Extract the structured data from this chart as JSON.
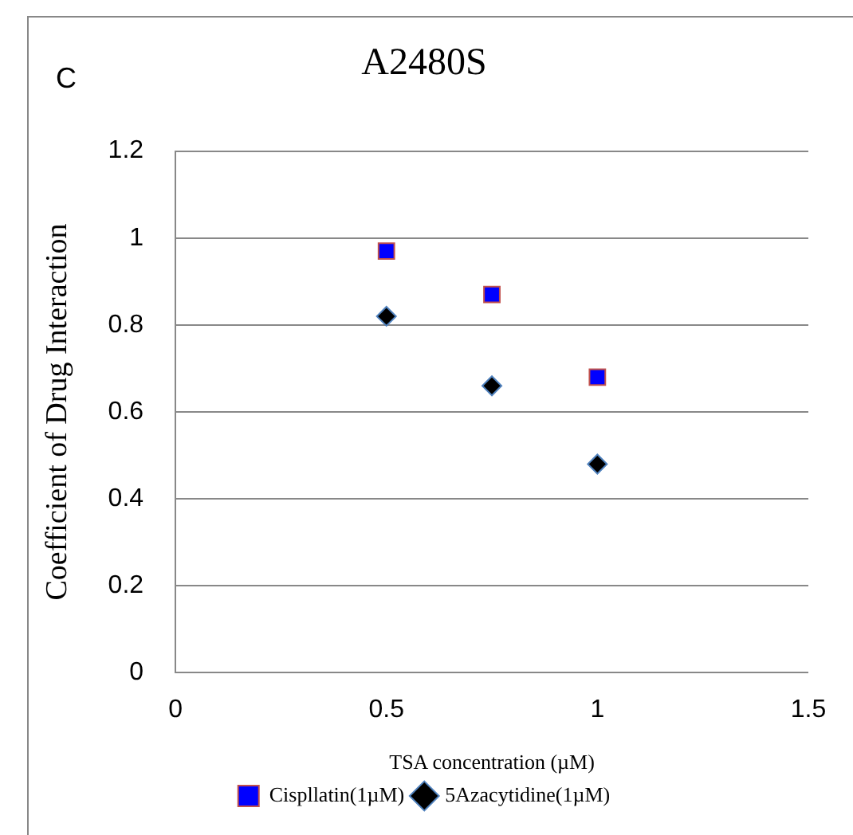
{
  "chart_data": {
    "type": "scatter",
    "title": "A2480S",
    "xlabel": "TSA concentration (µM)",
    "ylabel": "Coefficient of Drug Interaction",
    "annotations": [
      "C"
    ],
    "xlim": [
      0,
      1.5
    ],
    "xticks": [
      0,
      0.5,
      1,
      1.5
    ],
    "ylim": [
      0,
      1.2
    ],
    "yticks": [
      0,
      0.2,
      0.4,
      0.6,
      0.8,
      1,
      1.2
    ],
    "grid": "y",
    "legend": "bottom",
    "series": [
      {
        "name": "Cispllatin(1µM)",
        "color": "#0000ff",
        "marker": "square",
        "x": [
          0.5,
          0.75,
          1
        ],
        "values": [
          0.97,
          0.87,
          0.68
        ]
      },
      {
        "name": "5Azacytidine(1µM)",
        "color": "#000000",
        "marker": "diamond",
        "x": [
          0.5,
          0.75,
          1
        ],
        "values": [
          0.82,
          0.66,
          0.48
        ]
      }
    ]
  }
}
